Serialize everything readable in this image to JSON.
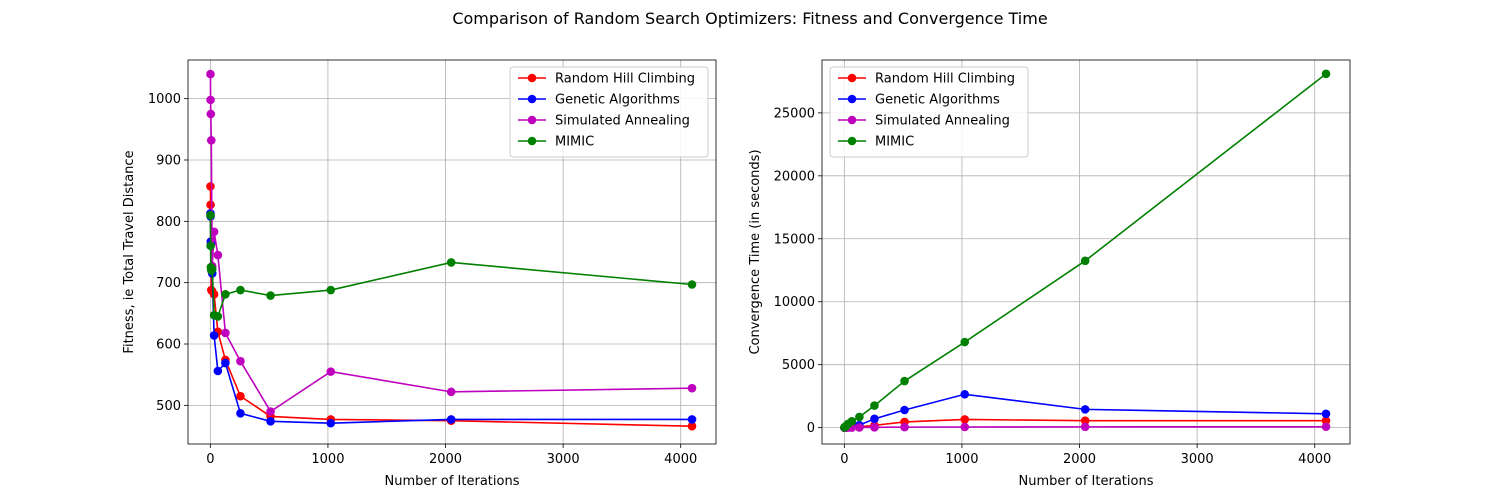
{
  "figure": {
    "title": "Comparison of Random Search Optimizers: Fitness and Convergence Time"
  },
  "chart_data": [
    {
      "type": "line",
      "xlabel": "Number of Iterations",
      "ylabel": "Fitness, ie Total Travel Distance",
      "xlim": [
        -190,
        4300
      ],
      "ylim": [
        437,
        1063
      ],
      "xticks": [
        0,
        1000,
        2000,
        3000,
        4000
      ],
      "yticks": [
        500,
        600,
        700,
        800,
        900,
        1000
      ],
      "grid": true,
      "legend_position": "upper right",
      "series": [
        {
          "name": "Random Hill Climbing",
          "color": "#ff0000",
          "x": [
            1,
            2,
            4,
            8,
            16,
            32,
            64,
            128,
            256,
            512,
            1024,
            2048,
            4096
          ],
          "y": [
            857,
            827,
            762,
            688,
            686,
            681,
            620,
            574,
            515,
            482,
            477,
            475,
            466
          ]
        },
        {
          "name": "Genetic Algorithms",
          "color": "#0000ff",
          "x": [
            1,
            2,
            4,
            8,
            16,
            32,
            64,
            128,
            256,
            512,
            1024,
            2048,
            4096
          ],
          "y": [
            813,
            808,
            767,
            765,
            715,
            614,
            556,
            569,
            487,
            474,
            471,
            477,
            477
          ]
        },
        {
          "name": "Simulated Annealing",
          "color": "#bf00bf",
          "x": [
            1,
            2,
            4,
            8,
            16,
            32,
            64,
            128,
            256,
            512,
            1024,
            2048,
            4096
          ],
          "y": [
            1040,
            998,
            975,
            932,
            727,
            783,
            745,
            618,
            572,
            490,
            555,
            522,
            528
          ]
        },
        {
          "name": "MIMIC",
          "color": "#008000",
          "x": [
            1,
            2,
            4,
            8,
            16,
            32,
            64,
            128,
            256,
            512,
            1024,
            2048,
            4096
          ],
          "y": [
            810,
            760,
            725,
            720,
            722,
            647,
            645,
            681,
            688,
            679,
            688,
            733,
            697
          ]
        }
      ]
    },
    {
      "type": "line",
      "xlabel": "Number of Iterations",
      "ylabel": "Convergence Time (in seconds)",
      "xlim": [
        -190,
        4300
      ],
      "ylim": [
        -1300,
        29200
      ],
      "xticks": [
        0,
        1000,
        2000,
        3000,
        4000
      ],
      "yticks": [
        0,
        5000,
        10000,
        15000,
        20000,
        25000
      ],
      "grid": true,
      "legend_position": "upper left",
      "series": [
        {
          "name": "Random Hill Climbing",
          "color": "#ff0000",
          "x": [
            1,
            2,
            4,
            8,
            16,
            32,
            64,
            128,
            256,
            512,
            1024,
            2048,
            4096
          ],
          "y": [
            0,
            1,
            2,
            5,
            10,
            20,
            40,
            80,
            180,
            450,
            650,
            550,
            550
          ]
        },
        {
          "name": "Genetic Algorithms",
          "color": "#0000ff",
          "x": [
            1,
            2,
            4,
            8,
            16,
            32,
            64,
            128,
            256,
            512,
            1024,
            2048,
            4096
          ],
          "y": [
            1,
            3,
            6,
            12,
            25,
            50,
            100,
            200,
            700,
            1400,
            2650,
            1450,
            1100
          ]
        },
        {
          "name": "Simulated Annealing",
          "color": "#bf00bf",
          "x": [
            1,
            2,
            4,
            8,
            16,
            32,
            64,
            128,
            256,
            512,
            1024,
            2048,
            4096
          ],
          "y": [
            0,
            0,
            1,
            1,
            2,
            4,
            8,
            15,
            25,
            40,
            50,
            60,
            70
          ]
        },
        {
          "name": "MIMIC",
          "color": "#008000",
          "x": [
            1,
            2,
            4,
            8,
            16,
            32,
            64,
            128,
            256,
            512,
            1024,
            2048,
            4096
          ],
          "y": [
            10,
            20,
            40,
            80,
            150,
            300,
            500,
            850,
            1750,
            3700,
            6800,
            13250,
            28100
          ]
        }
      ]
    }
  ]
}
